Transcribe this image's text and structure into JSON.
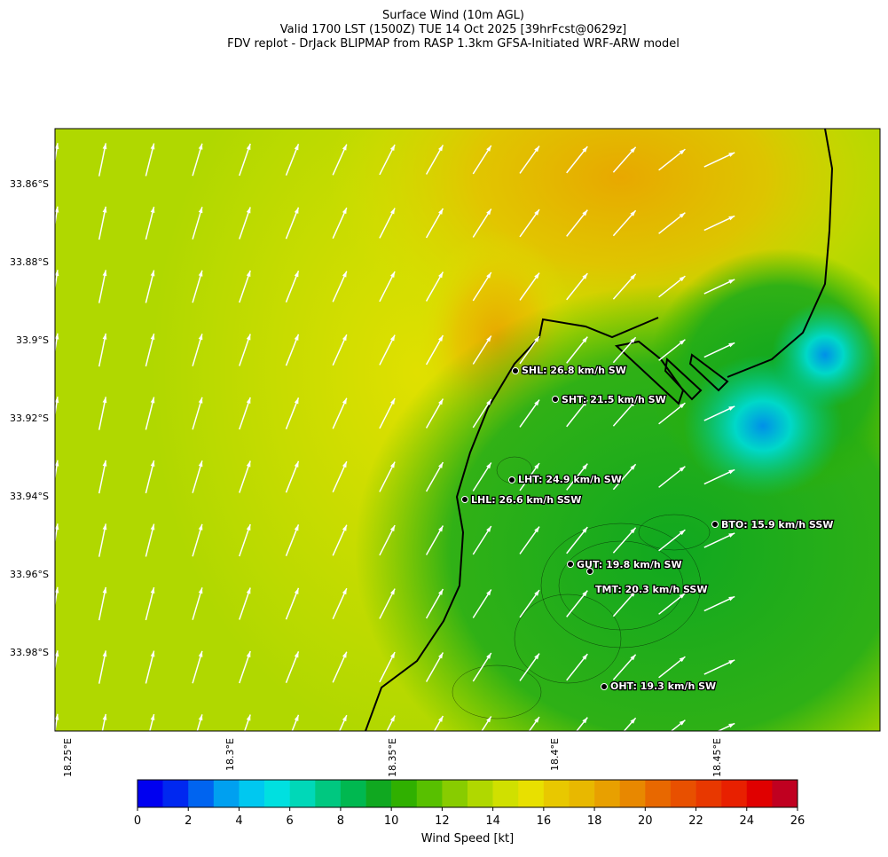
{
  "header": {
    "title": [
      "Surface Wind (10m AGL)",
      "Valid 1700 LST (1500Z) TUE 14 Oct 2025 [39hrFcst@0629z]",
      "FDV replot - DrJack BLIPMAP from RASP 1.3km GFSA-Initiated WRF-ARW model"
    ]
  },
  "map": {
    "lat_labels": [
      "33.86°S",
      "33.88°S",
      "33.9°S",
      "33.92°S",
      "33.94°S",
      "33.96°S",
      "33.98°S"
    ],
    "lon_labels": [
      "18.25°E",
      "18.3°E",
      "18.35°E",
      "18.4°E",
      "18.45°E"
    ],
    "stations": [
      {
        "label": "SHL: 26.8 km/h SW"
      },
      {
        "label": "SHT: 21.5 km/h SW"
      },
      {
        "label": "LHT: 24.9 km/h SW"
      },
      {
        "label": "LHL: 26.6 km/h SSW"
      },
      {
        "label": "BTO: 15.9 km/h SSW"
      },
      {
        "label": "GUT: 19.8 km/h SW"
      },
      {
        "label": "TMT: 20.3 km/h SSW"
      },
      {
        "label": "OHT: 19.3 km/h SW"
      }
    ]
  },
  "colorbar": {
    "label": "Wind Speed [kt]",
    "range": [
      0,
      26
    ],
    "ticks": [
      0,
      2,
      4,
      6,
      8,
      10,
      12,
      14,
      16,
      18,
      20,
      22,
      24,
      26
    ],
    "colors": [
      "#0000f0",
      "#0028f0",
      "#0064f0",
      "#00a0f0",
      "#00c8f0",
      "#00e0e0",
      "#00d8b8",
      "#00c880",
      "#00b850",
      "#10a820",
      "#30b000",
      "#58c000",
      "#88cc00",
      "#b0d800",
      "#d0e000",
      "#e8e000",
      "#e8c800",
      "#e8b800",
      "#e8a000",
      "#e88800",
      "#e86800",
      "#e85000",
      "#e83800",
      "#e82000",
      "#e00000",
      "#c00020"
    ]
  }
}
